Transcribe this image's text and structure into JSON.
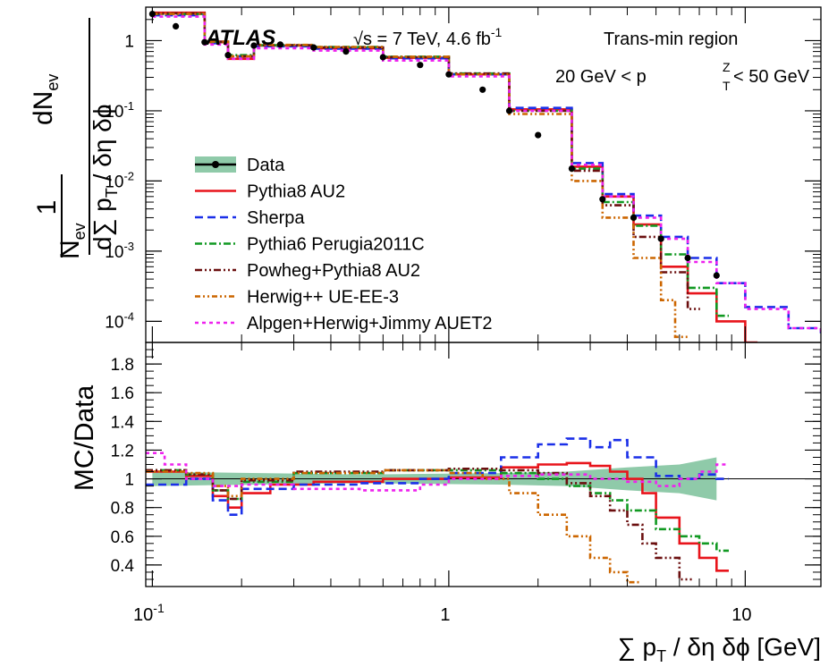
{
  "chart_data": {
    "type": "line",
    "x_scale": "log",
    "xlim": [
      0.095,
      18
    ],
    "x_ticks": [
      {
        "value": 0.1,
        "base": "10",
        "exp": "-1"
      },
      {
        "value": 1,
        "base": "1",
        "exp": ""
      },
      {
        "value": 10,
        "base": "10",
        "exp": ""
      }
    ],
    "xlabel": {
      "prefix": "∑ p",
      "sub": "T",
      "suffix": " / δη δϕ [GeV]"
    },
    "top_panel": {
      "y_scale": "log",
      "ylim": [
        5e-05,
        3.0
      ],
      "y_ticks": [
        {
          "value": 1,
          "base": "1",
          "exp": ""
        },
        {
          "value": 0.1,
          "base": "10",
          "exp": "-1"
        },
        {
          "value": 0.01,
          "base": "10",
          "exp": "-2"
        },
        {
          "value": 0.001,
          "base": "10",
          "exp": "-3"
        },
        {
          "value": 0.0001,
          "base": "10",
          "exp": "-4"
        }
      ],
      "ylabel": {
        "one": "1",
        "n_base": "N",
        "n_sub": "ev",
        "top": "dN",
        "top_sub": "ev",
        "bottom_a": "d∑ p",
        "bottom_sub": "T",
        "bottom_b": " / δη δϕ"
      }
    },
    "ratio_panel": {
      "ylim": [
        0.25,
        1.95
      ],
      "y_ticks": [
        "0.4",
        "0.6",
        "0.8",
        "1",
        "1.2",
        "1.4",
        "1.6",
        "1.8"
      ],
      "ylabel": "MC/Data"
    },
    "annotations": {
      "experiment": "ATLAS",
      "energy_sqrt": "√s",
      "energy_text": " = 7 TeV, 4.6 fb",
      "energy_exp": "-1",
      "region": "Trans-min region",
      "cut_a": "20 GeV < p",
      "cut_sup": "Z",
      "cut_sub": "T",
      "cut_b": " < 50 GeV"
    },
    "data": {
      "name": "Data",
      "color": "#000000",
      "band_color": "#8fcaa9",
      "points": [
        [
          0.1,
          2.4
        ],
        [
          0.12,
          1.6
        ],
        [
          0.15,
          0.95
        ],
        [
          0.18,
          0.62
        ],
        [
          0.22,
          0.85
        ],
        [
          0.27,
          0.88
        ],
        [
          0.35,
          0.8
        ],
        [
          0.45,
          0.7
        ],
        [
          0.6,
          0.58
        ],
        [
          0.8,
          0.45
        ],
        [
          1.0,
          0.33
        ],
        [
          1.3,
          0.2
        ],
        [
          1.6,
          0.1
        ],
        [
          2.0,
          0.045
        ],
        [
          2.6,
          0.015
        ],
        [
          3.3,
          0.0055
        ],
        [
          4.2,
          0.003
        ],
        [
          5.2,
          0.0015
        ],
        [
          6.4,
          0.0008
        ],
        [
          8.0,
          0.00045
        ]
      ],
      "ratio_band": [
        [
          0.1,
          0.05
        ],
        [
          0.5,
          0.03
        ],
        [
          1.5,
          0.04
        ],
        [
          2.5,
          0.05
        ],
        [
          4.0,
          0.08
        ],
        [
          6.0,
          0.1
        ],
        [
          8.0,
          0.15
        ]
      ]
    },
    "series": [
      {
        "name": "Pythia8 AU2",
        "color": "#e8141b",
        "dash": "",
        "points": [
          [
            0.1,
            2.5
          ],
          [
            0.15,
            0.95
          ],
          [
            0.18,
            0.55
          ],
          [
            0.22,
            0.85
          ],
          [
            0.35,
            0.78
          ],
          [
            0.6,
            0.57
          ],
          [
            1.0,
            0.33
          ],
          [
            1.6,
            0.105
          ],
          [
            2.6,
            0.016
          ],
          [
            3.3,
            0.006
          ],
          [
            4.2,
            0.0024
          ],
          [
            5.2,
            0.0006
          ],
          [
            6.4,
            0.00025
          ],
          [
            8.0,
            0.0001
          ],
          [
            10.0,
            5e-05
          ]
        ],
        "ratio": [
          [
            0.095,
            1.05
          ],
          [
            0.13,
            1.02
          ],
          [
            0.16,
            0.88
          ],
          [
            0.18,
            0.8
          ],
          [
            0.2,
            0.9
          ],
          [
            0.25,
            0.96
          ],
          [
            0.35,
            0.98
          ],
          [
            0.6,
            1.0
          ],
          [
            1.0,
            1.01
          ],
          [
            1.5,
            1.08
          ],
          [
            2.0,
            1.1
          ],
          [
            2.5,
            1.11
          ],
          [
            3.0,
            1.09
          ],
          [
            3.5,
            1.05
          ],
          [
            4.0,
            1.0
          ],
          [
            4.5,
            0.9
          ],
          [
            5.0,
            0.73
          ],
          [
            6.0,
            0.55
          ],
          [
            7.0,
            0.45
          ],
          [
            8.0,
            0.36
          ]
        ]
      },
      {
        "name": "Sherpa",
        "color": "#1a2fe8",
        "dash": "9,5",
        "points": [
          [
            0.1,
            2.3
          ],
          [
            0.15,
            0.92
          ],
          [
            0.18,
            0.6
          ],
          [
            0.22,
            0.83
          ],
          [
            0.35,
            0.77
          ],
          [
            0.6,
            0.56
          ],
          [
            1.0,
            0.33
          ],
          [
            1.6,
            0.11
          ],
          [
            2.6,
            0.018
          ],
          [
            3.3,
            0.0065
          ],
          [
            4.2,
            0.0032
          ],
          [
            5.2,
            0.0016
          ],
          [
            6.4,
            0.0008
          ],
          [
            8.0,
            0.00035
          ],
          [
            10.0,
            0.00016
          ],
          [
            14.0,
            8e-05
          ],
          [
            18.0,
            7e-05
          ]
        ],
        "ratio": [
          [
            0.095,
            0.96
          ],
          [
            0.13,
            1.0
          ],
          [
            0.16,
            0.85
          ],
          [
            0.18,
            0.75
          ],
          [
            0.2,
            0.93
          ],
          [
            0.3,
            0.96
          ],
          [
            0.5,
            0.97
          ],
          [
            0.8,
            1.0
          ],
          [
            1.0,
            1.04
          ],
          [
            1.5,
            1.15
          ],
          [
            2.0,
            1.24
          ],
          [
            2.5,
            1.28
          ],
          [
            3.0,
            1.22
          ],
          [
            3.5,
            1.27
          ],
          [
            4.0,
            1.15
          ],
          [
            5.0,
            1.02
          ],
          [
            6.0,
            1.0
          ],
          [
            7.0,
            1.03
          ],
          [
            8.0,
            1.0
          ]
        ]
      },
      {
        "name": "Pythia6 Perugia2011C",
        "color": "#119922",
        "dash": "8,3,2,3",
        "points": [
          [
            0.1,
            2.4
          ],
          [
            0.15,
            0.96
          ],
          [
            0.18,
            0.62
          ],
          [
            0.22,
            0.86
          ],
          [
            0.35,
            0.81
          ],
          [
            0.6,
            0.59
          ],
          [
            1.0,
            0.34
          ],
          [
            1.6,
            0.1
          ],
          [
            2.6,
            0.015
          ],
          [
            3.3,
            0.005
          ],
          [
            4.2,
            0.0023
          ],
          [
            5.2,
            0.0009
          ],
          [
            6.4,
            0.0003
          ],
          [
            8.0,
            0.00012
          ]
        ],
        "ratio": [
          [
            0.095,
            1.06
          ],
          [
            0.13,
            1.03
          ],
          [
            0.16,
            0.92
          ],
          [
            0.18,
            0.86
          ],
          [
            0.2,
            0.98
          ],
          [
            0.3,
            1.04
          ],
          [
            0.6,
            1.06
          ],
          [
            1.0,
            1.06
          ],
          [
            1.5,
            1.04
          ],
          [
            2.0,
            1.0
          ],
          [
            2.5,
            0.95
          ],
          [
            3.0,
            0.9
          ],
          [
            3.5,
            0.85
          ],
          [
            4.0,
            0.78
          ],
          [
            5.0,
            0.65
          ],
          [
            6.0,
            0.6
          ],
          [
            7.0,
            0.55
          ],
          [
            8.0,
            0.5
          ]
        ]
      },
      {
        "name": "Powheg+Pythia8 AU2",
        "color": "#6b0f0f",
        "dash": "8,3,2,3,2,3",
        "points": [
          [
            0.1,
            2.45
          ],
          [
            0.15,
            0.97
          ],
          [
            0.18,
            0.6
          ],
          [
            0.22,
            0.86
          ],
          [
            0.35,
            0.8
          ],
          [
            0.6,
            0.58
          ],
          [
            1.0,
            0.34
          ],
          [
            1.6,
            0.1
          ],
          [
            2.6,
            0.014
          ],
          [
            3.3,
            0.0045
          ],
          [
            4.2,
            0.0016
          ],
          [
            5.2,
            0.0005
          ],
          [
            6.4,
            0.00015
          ]
        ],
        "ratio": [
          [
            0.095,
            1.06
          ],
          [
            0.13,
            1.03
          ],
          [
            0.16,
            0.92
          ],
          [
            0.18,
            0.86
          ],
          [
            0.2,
            0.99
          ],
          [
            0.3,
            1.05
          ],
          [
            0.6,
            1.06
          ],
          [
            1.0,
            1.07
          ],
          [
            1.5,
            1.06
          ],
          [
            2.0,
            1.04
          ],
          [
            2.5,
            0.97
          ],
          [
            3.0,
            0.88
          ],
          [
            3.5,
            0.78
          ],
          [
            4.0,
            0.68
          ],
          [
            4.5,
            0.55
          ],
          [
            5.0,
            0.45
          ],
          [
            6.0,
            0.3
          ]
        ]
      },
      {
        "name": "Herwig++ UE-EE-3",
        "color": "#cc6600",
        "dash": "6,3,2,3,2,3",
        "points": [
          [
            0.1,
            2.4
          ],
          [
            0.15,
            0.97
          ],
          [
            0.18,
            0.6
          ],
          [
            0.22,
            0.87
          ],
          [
            0.35,
            0.81
          ],
          [
            0.6,
            0.59
          ],
          [
            1.0,
            0.33
          ],
          [
            1.6,
            0.09
          ],
          [
            2.6,
            0.01
          ],
          [
            3.3,
            0.003
          ],
          [
            4.2,
            0.0008
          ],
          [
            5.2,
            0.0002
          ],
          [
            5.8,
            6e-05
          ]
        ],
        "ratio": [
          [
            0.095,
            1.05
          ],
          [
            0.13,
            1.04
          ],
          [
            0.16,
            0.95
          ],
          [
            0.18,
            0.88
          ],
          [
            0.2,
            1.0
          ],
          [
            0.3,
            1.04
          ],
          [
            0.6,
            1.06
          ],
          [
            1.0,
            1.04
          ],
          [
            1.3,
            1.0
          ],
          [
            1.6,
            0.9
          ],
          [
            2.0,
            0.75
          ],
          [
            2.5,
            0.6
          ],
          [
            3.0,
            0.45
          ],
          [
            3.5,
            0.35
          ],
          [
            4.0,
            0.28
          ]
        ]
      },
      {
        "name": "Alpgen+Herwig+Jimmy AUET2",
        "color": "#ee22ee",
        "dash": "4,4",
        "points": [
          [
            0.1,
            2.2
          ],
          [
            0.15,
            0.88
          ],
          [
            0.18,
            0.55
          ],
          [
            0.22,
            0.78
          ],
          [
            0.35,
            0.72
          ],
          [
            0.6,
            0.52
          ],
          [
            1.0,
            0.31
          ],
          [
            1.6,
            0.1
          ],
          [
            2.6,
            0.017
          ],
          [
            3.3,
            0.006
          ],
          [
            4.2,
            0.003
          ],
          [
            5.2,
            0.0015
          ],
          [
            6.4,
            0.0007
          ],
          [
            8.0,
            0.00035
          ],
          [
            10.0,
            0.00015
          ],
          [
            14.0,
            8e-05
          ],
          [
            18.0,
            7e-05
          ]
        ],
        "ratio": [
          [
            0.095,
            1.18
          ],
          [
            0.11,
            1.1
          ],
          [
            0.13,
            1.0
          ],
          [
            0.16,
            0.95
          ],
          [
            0.2,
            0.96
          ],
          [
            0.3,
            0.93
          ],
          [
            0.5,
            0.92
          ],
          [
            0.8,
            0.96
          ],
          [
            1.0,
            1.0
          ],
          [
            1.5,
            1.02
          ],
          [
            2.0,
            1.03
          ],
          [
            3.0,
            1.0
          ],
          [
            4.0,
            0.98
          ],
          [
            5.0,
            0.95
          ],
          [
            6.0,
            1.0
          ],
          [
            7.0,
            1.05
          ],
          [
            8.0,
            1.1
          ]
        ]
      }
    ]
  }
}
